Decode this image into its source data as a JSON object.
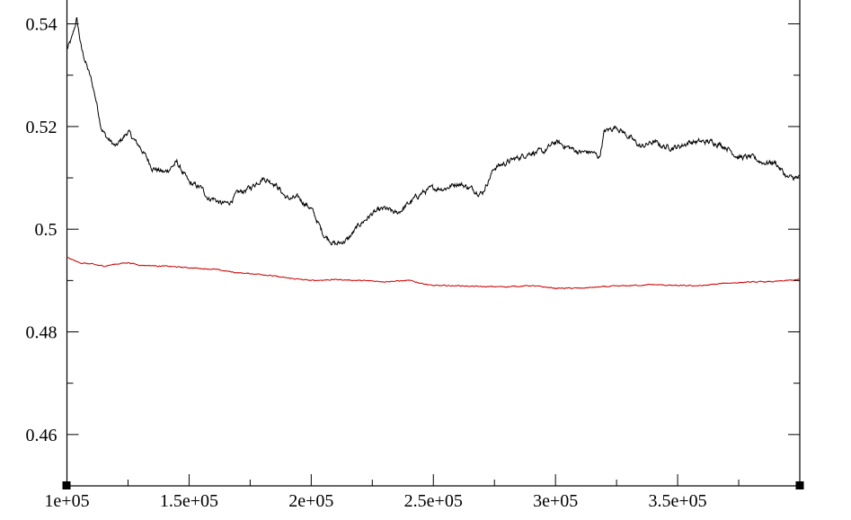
{
  "chart_data": {
    "type": "line",
    "title": "",
    "xlabel": "",
    "ylabel": "",
    "xlim": [
      100000,
      400000
    ],
    "ylim": [
      0.45,
      0.545
    ],
    "x_ticks": [
      100000,
      150000,
      200000,
      250000,
      300000,
      350000
    ],
    "x_tick_labels": [
      "1e+05",
      "1.5e+05",
      "2e+05",
      "2.5e+05",
      "3e+05",
      "3.5e+05"
    ],
    "y_ticks": [
      0.46,
      0.48,
      0.5,
      0.52,
      0.54
    ],
    "y_tick_labels": [
      "0.46",
      "0.48",
      "0.5",
      "0.52",
      "0.54"
    ],
    "grid": false,
    "series": [
      {
        "color": "#000000",
        "x": [
          100000,
          102000,
          104000,
          106000,
          108000,
          110000,
          112000,
          114000,
          116000,
          118000,
          120000,
          125000,
          128000,
          130000,
          135000,
          140000,
          145000,
          150000,
          155000,
          158000,
          160000,
          163000,
          166000,
          170000,
          175000,
          180000,
          185000,
          190000,
          195000,
          200000,
          205000,
          210000,
          215000,
          220000,
          225000,
          230000,
          235000,
          240000,
          245000,
          250000,
          255000,
          260000,
          265000,
          270000,
          275000,
          280000,
          285000,
          290000,
          295000,
          300000,
          305000,
          310000,
          315000,
          318000,
          320000,
          325000,
          330000,
          335000,
          340000,
          345000,
          350000,
          355000,
          360000,
          365000,
          370000,
          375000,
          380000,
          385000,
          390000,
          395000,
          400000
        ],
        "y": [
          0.535,
          0.537,
          0.541,
          0.535,
          0.532,
          0.529,
          0.525,
          0.52,
          0.518,
          0.517,
          0.516,
          0.519,
          0.517,
          0.516,
          0.512,
          0.511,
          0.513,
          0.509,
          0.508,
          0.506,
          0.506,
          0.505,
          0.505,
          0.507,
          0.508,
          0.51,
          0.509,
          0.506,
          0.506,
          0.504,
          0.499,
          0.497,
          0.498,
          0.501,
          0.503,
          0.504,
          0.503,
          0.505,
          0.507,
          0.508,
          0.508,
          0.509,
          0.508,
          0.507,
          0.512,
          0.513,
          0.514,
          0.515,
          0.515,
          0.517,
          0.516,
          0.515,
          0.515,
          0.514,
          0.519,
          0.52,
          0.518,
          0.516,
          0.517,
          0.516,
          0.516,
          0.517,
          0.517,
          0.517,
          0.516,
          0.514,
          0.514,
          0.513,
          0.513,
          0.51,
          0.51
        ],
        "noise": 0.0008
      },
      {
        "color": "#cc0000",
        "x": [
          100000,
          105000,
          110000,
          115000,
          120000,
          125000,
          130000,
          140000,
          150000,
          160000,
          170000,
          180000,
          190000,
          200000,
          210000,
          220000,
          230000,
          240000,
          250000,
          260000,
          270000,
          280000,
          290000,
          300000,
          310000,
          320000,
          330000,
          340000,
          350000,
          360000,
          370000,
          380000,
          390000,
          400000
        ],
        "y": [
          0.4945,
          0.4935,
          0.4932,
          0.4928,
          0.4932,
          0.4935,
          0.493,
          0.4928,
          0.4925,
          0.4922,
          0.4915,
          0.4912,
          0.4905,
          0.49,
          0.4902,
          0.49,
          0.4898,
          0.49,
          0.489,
          0.489,
          0.4888,
          0.4888,
          0.489,
          0.4885,
          0.4885,
          0.4888,
          0.489,
          0.4892,
          0.489,
          0.489,
          0.4895,
          0.4897,
          0.4898,
          0.4902
        ],
        "noise": 0.00015
      }
    ]
  }
}
